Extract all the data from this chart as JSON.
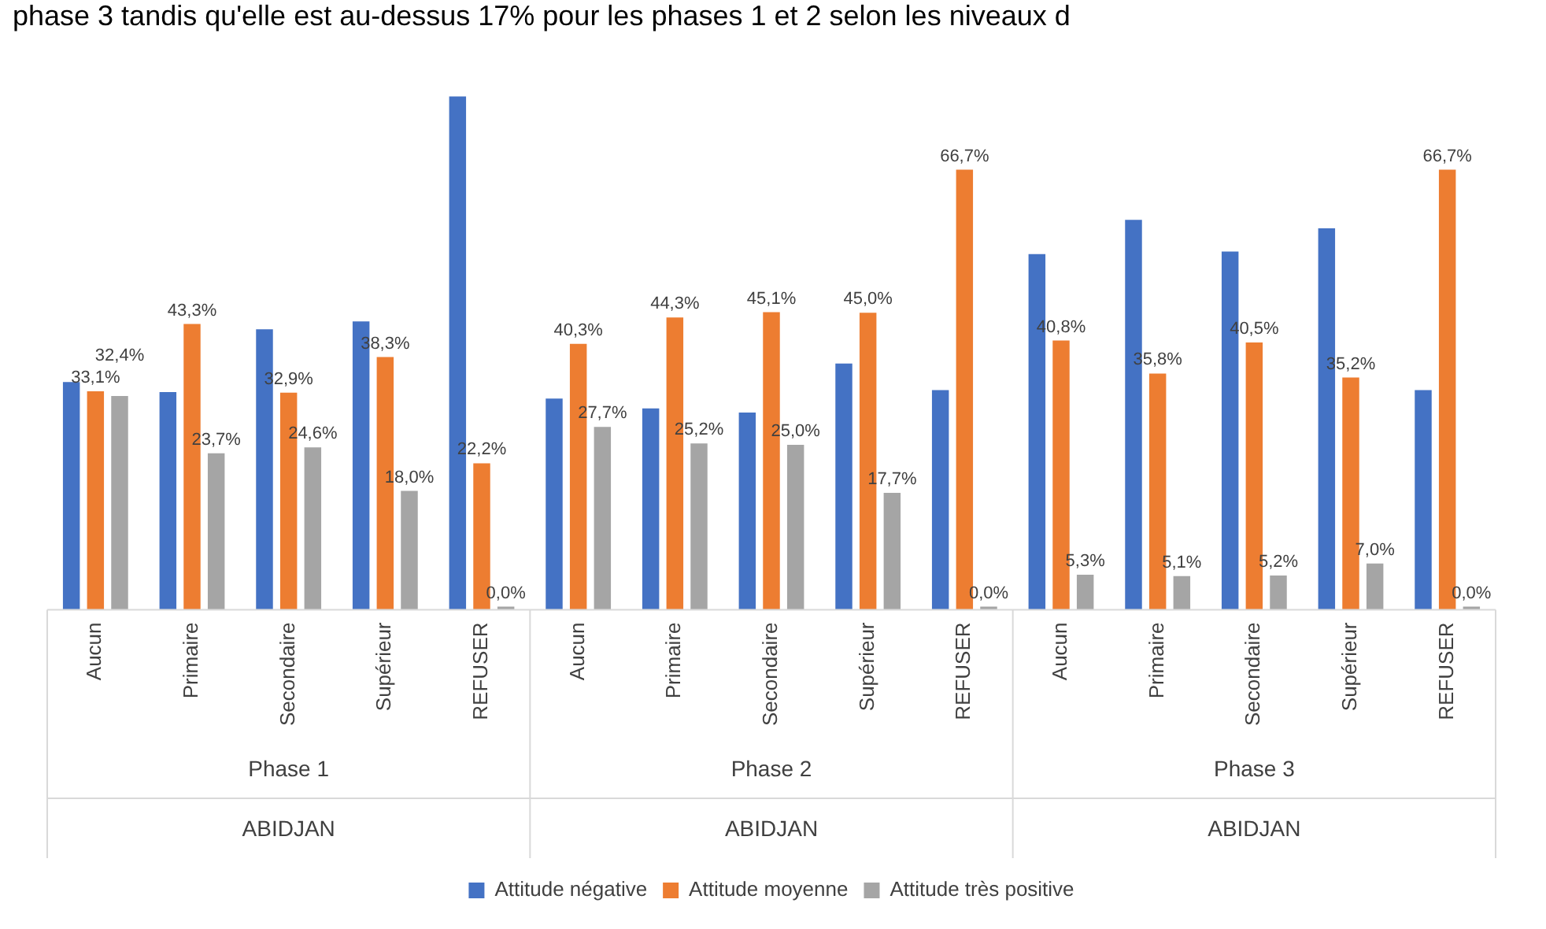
{
  "chart_data": {
    "type": "bar",
    "categories": [
      "Aucun",
      "Primaire",
      "Secondaire",
      "Supérieur",
      "REFUSER",
      "Aucun",
      "Primaire",
      "Secondaire",
      "Supérieur",
      "REFUSER",
      "Aucun",
      "Primaire",
      "Secondaire",
      "Supérieur",
      "REFUSER"
    ],
    "series": [
      {
        "name": "Attitude négative",
        "color": "#4472c4",
        "values": [
          34.5,
          33.0,
          42.5,
          43.7,
          77.8,
          32.0,
          30.5,
          29.9,
          37.3,
          33.3,
          53.9,
          59.1,
          54.3,
          57.8,
          33.3
        ]
      },
      {
        "name": "Attitude moyenne",
        "color": "#ed7d31",
        "values": [
          33.1,
          43.3,
          32.9,
          38.3,
          22.2,
          40.3,
          44.3,
          45.1,
          45.0,
          66.7,
          40.8,
          35.8,
          40.5,
          35.2,
          66.7
        ],
        "value_labels": [
          "33,1%",
          "43,3%",
          "32,9%",
          "38,3%",
          "22,2%",
          "40,3%",
          "44,3%",
          "45,1%",
          "45,0%",
          "66,7%",
          "40,8%",
          "35,8%",
          "40,5%",
          "35,2%",
          "66,7%"
        ]
      },
      {
        "name": "Attitude très positive",
        "color": "#a5a5a5",
        "values": [
          32.4,
          23.7,
          24.6,
          18.0,
          0.0,
          27.7,
          25.2,
          25.0,
          17.7,
          0.0,
          5.3,
          5.1,
          5.2,
          7.0,
          0.0
        ],
        "value_labels": [
          "32,4%",
          "23,7%",
          "24,6%",
          "18,0%",
          "0,0%",
          "27,7%",
          "25,2%",
          "25,0%",
          "17,7%",
          "0,0%",
          "5,3%",
          "5,1%",
          "5,2%",
          "7,0%",
          "0,0%"
        ]
      }
    ],
    "annotations": [
      "phase 3 tandis qu'elle est au-dessus 17% pour les phases 1 et 2 selon les niveaux d",
      "Phase 1",
      "ABIDJAN",
      "Phase 2",
      "ABIDJAN",
      "Phase 3",
      "ABIDJAN"
    ],
    "legend": "bottom",
    "grid": false
  }
}
